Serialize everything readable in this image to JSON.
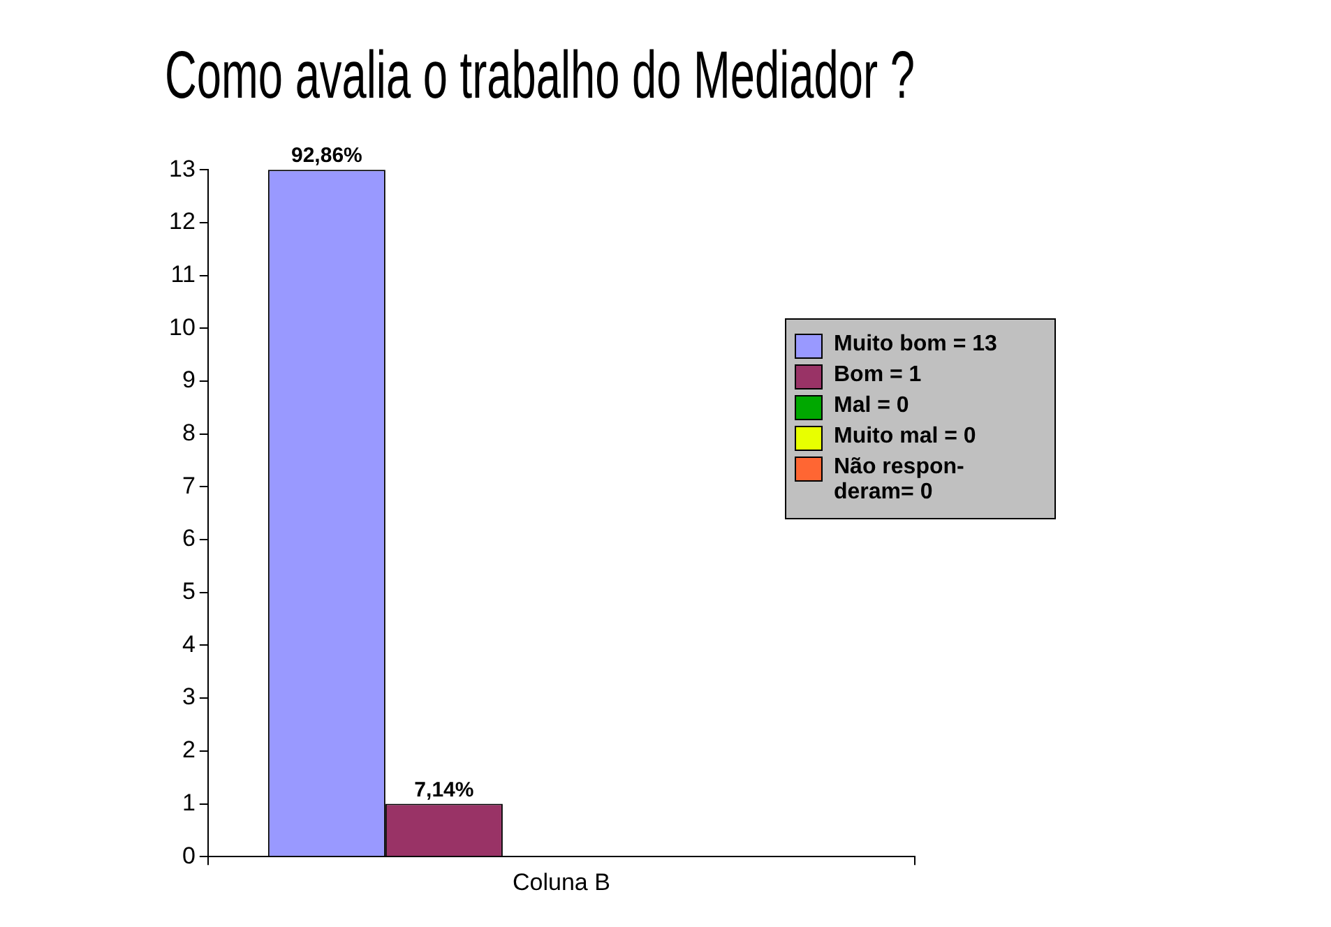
{
  "chart_data": {
    "type": "bar",
    "title": "Como avalia o trabalho do Mediador ?",
    "categories": [
      "Coluna B"
    ],
    "series": [
      {
        "name": "Muito bom = 13",
        "color": "#9999ff",
        "values": [
          13
        ]
      },
      {
        "name": "Bom = 1",
        "color": "#993366",
        "values": [
          1
        ]
      },
      {
        "name": "Mal = 0",
        "color": "#00a800",
        "values": [
          0
        ]
      },
      {
        "name": "Muito mal = 0",
        "color": "#e8ff00",
        "values": [
          0
        ]
      },
      {
        "name": "Não respon-\nderam= 0",
        "color": "#ff6633",
        "values": [
          0
        ]
      }
    ],
    "annotations": [
      "92,86%",
      "7,14%"
    ],
    "ylim": [
      0,
      13
    ],
    "yticks": [
      0,
      1,
      2,
      3,
      4,
      5,
      6,
      7,
      8,
      9,
      10,
      11,
      12,
      13
    ],
    "grid": false,
    "legend": "right"
  }
}
